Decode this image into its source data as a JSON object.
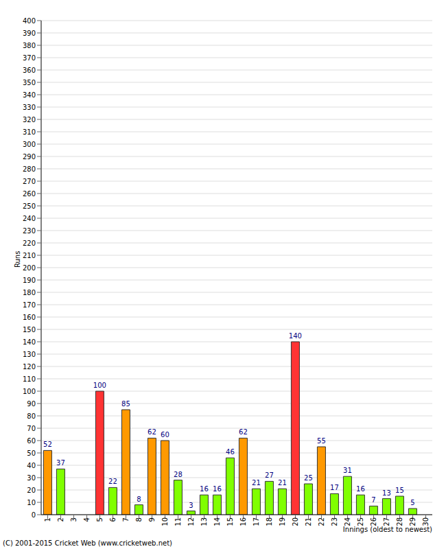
{
  "chart_data": {
    "type": "bar",
    "ylabel": "Runs",
    "xlabel": "Innings (oldest to newest)",
    "annotations": [
      "(C) 2001-2015 Cricket Web (www.cricketweb.net)"
    ],
    "categories": [
      "1",
      "2",
      "3",
      "4",
      "5",
      "6",
      "7",
      "8",
      "9",
      "10",
      "11",
      "12",
      "13",
      "14",
      "15",
      "16",
      "17",
      "18",
      "19",
      "20",
      "21",
      "22",
      "23",
      "24",
      "25",
      "26",
      "27",
      "28",
      "29",
      "30"
    ],
    "values": [
      52,
      37,
      0,
      0,
      100,
      22,
      85,
      8,
      62,
      60,
      28,
      3,
      16,
      16,
      46,
      62,
      21,
      27,
      21,
      140,
      25,
      55,
      17,
      31,
      16,
      7,
      13,
      15,
      5,
      0
    ],
    "colors": [
      "#ff9900",
      "#80ff00",
      "#80ff00",
      "#80ff00",
      "#ff3333",
      "#80ff00",
      "#ff9900",
      "#80ff00",
      "#ff9900",
      "#ff9900",
      "#80ff00",
      "#80ff00",
      "#80ff00",
      "#80ff00",
      "#80ff00",
      "#ff9900",
      "#80ff00",
      "#80ff00",
      "#80ff00",
      "#ff3333",
      "#80ff00",
      "#ff9900",
      "#80ff00",
      "#80ff00",
      "#80ff00",
      "#80ff00",
      "#80ff00",
      "#80ff00",
      "#80ff00",
      "#80ff00"
    ],
    "ylim": [
      0,
      400
    ],
    "yticks": [
      0,
      10,
      20,
      30,
      40,
      50,
      60,
      70,
      80,
      90,
      100,
      110,
      120,
      130,
      140,
      150,
      160,
      170,
      180,
      190,
      200,
      210,
      220,
      230,
      240,
      250,
      260,
      270,
      280,
      290,
      300,
      310,
      320,
      330,
      340,
      350,
      360,
      370,
      380,
      390,
      400
    ],
    "grid": true,
    "data_labels": true
  }
}
